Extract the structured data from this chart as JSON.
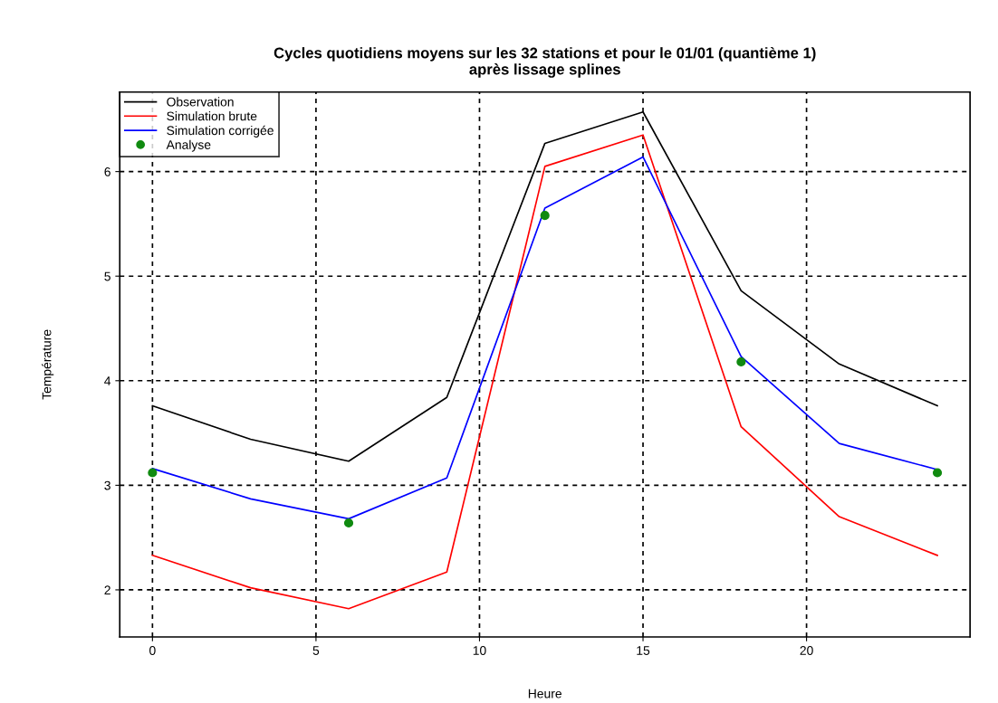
{
  "chart_data": {
    "type": "line",
    "title": "Cycles quotidiens moyens sur les 32 stations et pour le 01/01 (quantième 1)\naprès lissage splines",
    "xlabel": "Heure",
    "ylabel": "Température",
    "x": [
      0,
      3,
      6,
      9,
      12,
      15,
      18,
      21,
      24
    ],
    "series": [
      {
        "name": "Observation",
        "color": "#000000",
        "values": [
          3.76,
          3.44,
          3.23,
          3.84,
          6.27,
          6.57,
          4.86,
          4.16,
          3.76
        ]
      },
      {
        "name": "Simulation brute",
        "color": "#ff0000",
        "values": [
          2.33,
          2.02,
          1.82,
          2.17,
          6.05,
          6.35,
          3.56,
          2.7,
          2.33
        ]
      },
      {
        "name": "Simulation corrigée",
        "color": "#0000ff",
        "values": [
          3.16,
          2.87,
          2.68,
          3.07,
          5.65,
          6.14,
          4.23,
          3.4,
          3.15
        ]
      },
      {
        "name": "Analyse",
        "type": "scatter",
        "color": "#108a10",
        "x": [
          0,
          6,
          12,
          18,
          24
        ],
        "values": [
          3.12,
          2.64,
          5.58,
          4.18,
          3.12
        ],
        "marker": "circle"
      }
    ],
    "xlim": [
      -1,
      25
    ],
    "ylim": [
      1.55,
      6.76
    ],
    "xticks": [
      0,
      5,
      10,
      15,
      20
    ],
    "yticks": [
      2,
      3,
      4,
      5,
      6
    ],
    "grid": true,
    "legend": "top left",
    "marker": "none",
    "line_style": "solid"
  }
}
